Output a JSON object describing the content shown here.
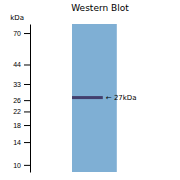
{
  "chart_data": {
    "type": "band",
    "title": "Western Blot",
    "ylabel": "kDa",
    "annotation": "← 27kDa",
    "values": [
      27
    ],
    "color": "#3a3060",
    "log": "y",
    "ylim": [
      9.0,
      80.0
    ],
    "yticks": [
      70,
      44,
      33,
      26,
      22,
      18,
      14,
      10
    ],
    "grid": false,
    "tick_labels": "y"
  }
}
